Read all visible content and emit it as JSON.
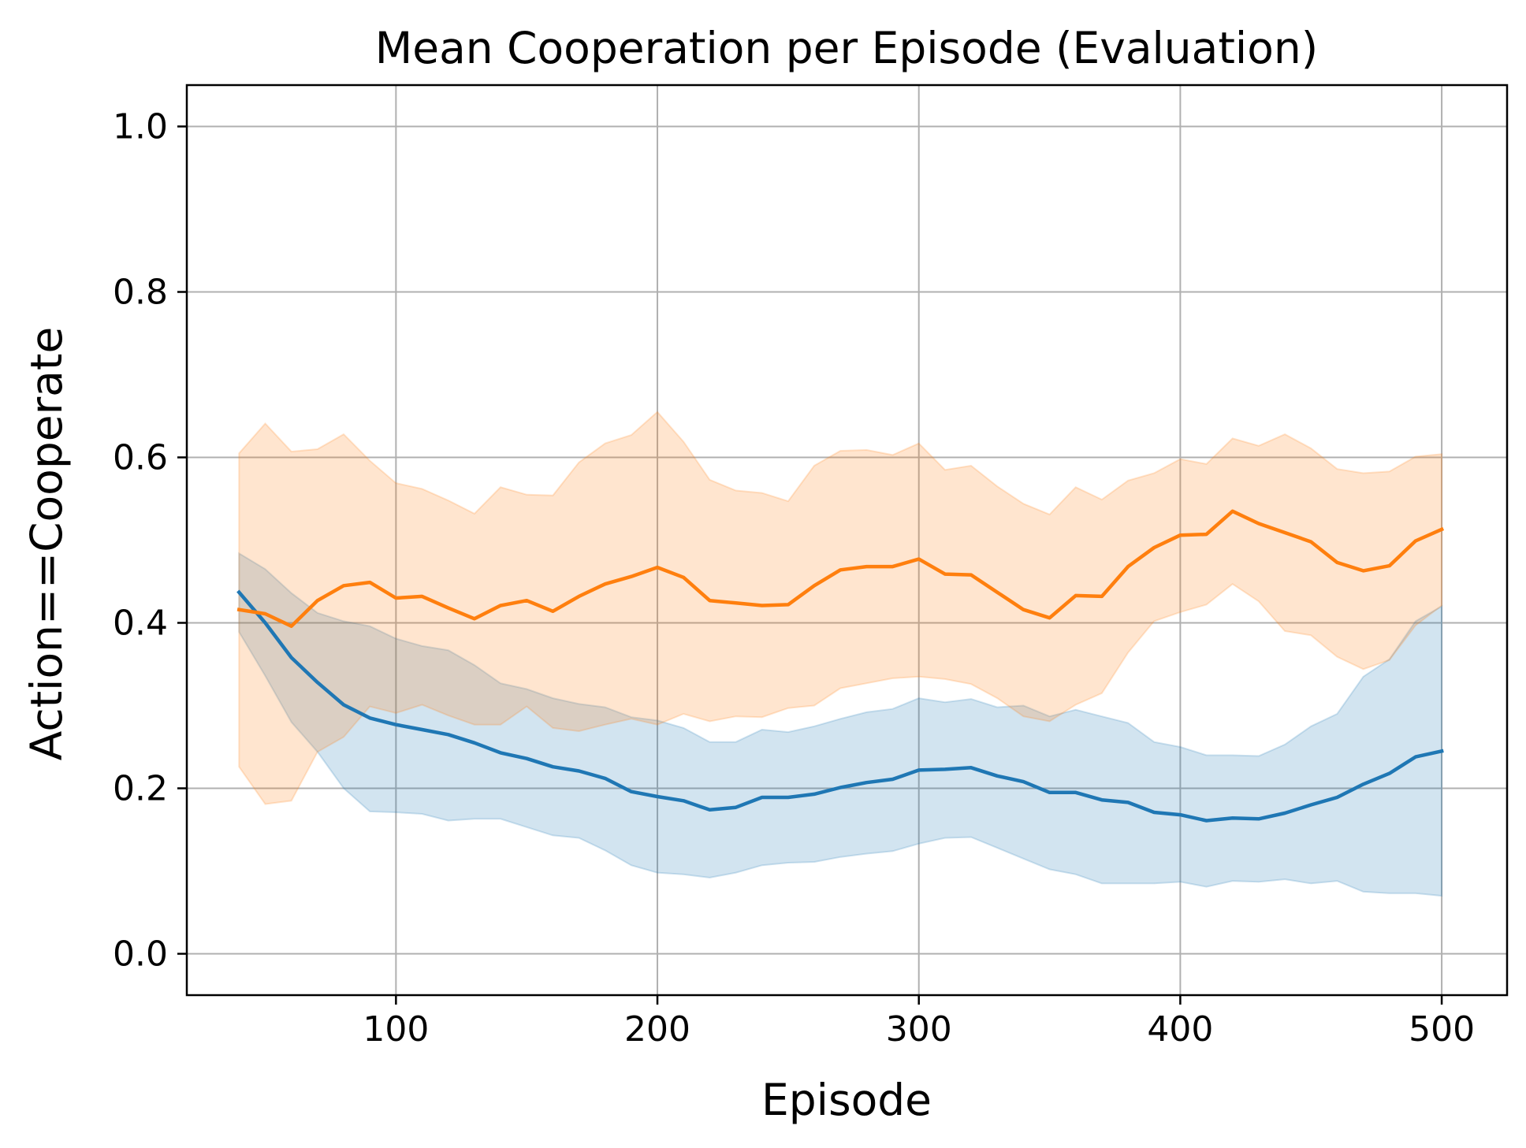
{
  "chart_data": {
    "type": "line",
    "title": "Mean Cooperation per Episode (Evaluation)",
    "xlabel": "Episode",
    "ylabel": "Action==Cooperate",
    "xlim": [
      20,
      525
    ],
    "ylim": [
      -0.05,
      1.05
    ],
    "xticks": [
      100,
      200,
      300,
      400,
      500
    ],
    "xtick_labels": [
      "100",
      "200",
      "300",
      "400",
      "500"
    ],
    "yticks": [
      0.0,
      0.2,
      0.4,
      0.6,
      0.8,
      1.0
    ],
    "ytick_labels": [
      "0.0",
      "0.2",
      "0.4",
      "0.6",
      "0.8",
      "1.0"
    ],
    "grid": true,
    "x": [
      40,
      50,
      60,
      70,
      80,
      90,
      100,
      110,
      120,
      130,
      140,
      150,
      160,
      170,
      180,
      190,
      200,
      210,
      220,
      230,
      240,
      250,
      260,
      270,
      280,
      290,
      300,
      310,
      320,
      330,
      340,
      350,
      360,
      370,
      380,
      390,
      400,
      410,
      420,
      430,
      440,
      450,
      460,
      470,
      480,
      490,
      500
    ],
    "series": [
      {
        "name": "blue",
        "color": "#1f77b4",
        "band_color": "#1f77b4",
        "values": [
          0.437,
          0.4,
          0.358,
          0.328,
          0.301,
          0.285,
          0.277,
          0.271,
          0.265,
          0.255,
          0.243,
          0.236,
          0.226,
          0.221,
          0.212,
          0.196,
          0.19,
          0.185,
          0.174,
          0.177,
          0.189,
          0.189,
          0.193,
          0.201,
          0.207,
          0.211,
          0.222,
          0.223,
          0.225,
          0.215,
          0.208,
          0.195,
          0.195,
          0.186,
          0.183,
          0.171,
          0.168,
          0.161,
          0.164,
          0.163,
          0.17,
          0.18,
          0.189,
          0.205,
          0.218,
          0.238,
          0.245
        ],
        "upper": [
          0.484,
          0.465,
          0.436,
          0.412,
          0.402,
          0.396,
          0.381,
          0.372,
          0.367,
          0.349,
          0.327,
          0.32,
          0.309,
          0.302,
          0.298,
          0.286,
          0.282,
          0.273,
          0.256,
          0.256,
          0.271,
          0.268,
          0.275,
          0.284,
          0.292,
          0.296,
          0.309,
          0.304,
          0.308,
          0.298,
          0.3,
          0.287,
          0.295,
          0.287,
          0.279,
          0.256,
          0.25,
          0.24,
          0.24,
          0.239,
          0.253,
          0.275,
          0.29,
          0.335,
          0.356,
          0.402,
          0.42
        ],
        "lower": [
          0.389,
          0.336,
          0.28,
          0.244,
          0.2,
          0.172,
          0.171,
          0.169,
          0.161,
          0.163,
          0.163,
          0.153,
          0.143,
          0.14,
          0.125,
          0.107,
          0.098,
          0.096,
          0.092,
          0.098,
          0.107,
          0.11,
          0.111,
          0.117,
          0.121,
          0.124,
          0.133,
          0.14,
          0.141,
          0.128,
          0.115,
          0.102,
          0.096,
          0.085,
          0.085,
          0.085,
          0.087,
          0.081,
          0.088,
          0.087,
          0.09,
          0.085,
          0.088,
          0.075,
          0.073,
          0.073,
          0.07
        ]
      },
      {
        "name": "orange",
        "color": "#ff7f0e",
        "band_color": "#ff7f0e",
        "values": [
          0.416,
          0.411,
          0.396,
          0.427,
          0.445,
          0.449,
          0.43,
          0.432,
          0.418,
          0.405,
          0.421,
          0.427,
          0.414,
          0.432,
          0.447,
          0.456,
          0.467,
          0.455,
          0.427,
          0.424,
          0.421,
          0.422,
          0.445,
          0.464,
          0.468,
          0.468,
          0.477,
          0.459,
          0.458,
          0.437,
          0.416,
          0.406,
          0.433,
          0.432,
          0.468,
          0.491,
          0.506,
          0.507,
          0.535,
          0.52,
          0.509,
          0.498,
          0.473,
          0.463,
          0.469,
          0.499,
          0.513
        ],
        "upper": [
          0.605,
          0.641,
          0.607,
          0.61,
          0.628,
          0.596,
          0.569,
          0.562,
          0.548,
          0.532,
          0.564,
          0.555,
          0.554,
          0.594,
          0.617,
          0.627,
          0.655,
          0.619,
          0.573,
          0.56,
          0.557,
          0.547,
          0.59,
          0.608,
          0.609,
          0.603,
          0.617,
          0.585,
          0.59,
          0.565,
          0.544,
          0.531,
          0.564,
          0.549,
          0.572,
          0.581,
          0.598,
          0.592,
          0.623,
          0.614,
          0.628,
          0.611,
          0.586,
          0.581,
          0.583,
          0.601,
          0.604
        ],
        "lower": [
          0.226,
          0.181,
          0.185,
          0.244,
          0.262,
          0.299,
          0.291,
          0.301,
          0.288,
          0.277,
          0.277,
          0.299,
          0.273,
          0.269,
          0.277,
          0.284,
          0.277,
          0.29,
          0.281,
          0.287,
          0.286,
          0.297,
          0.3,
          0.321,
          0.327,
          0.333,
          0.335,
          0.332,
          0.326,
          0.309,
          0.287,
          0.281,
          0.301,
          0.315,
          0.364,
          0.402,
          0.413,
          0.422,
          0.447,
          0.426,
          0.39,
          0.385,
          0.359,
          0.344,
          0.355,
          0.397,
          0.421
        ]
      }
    ]
  }
}
